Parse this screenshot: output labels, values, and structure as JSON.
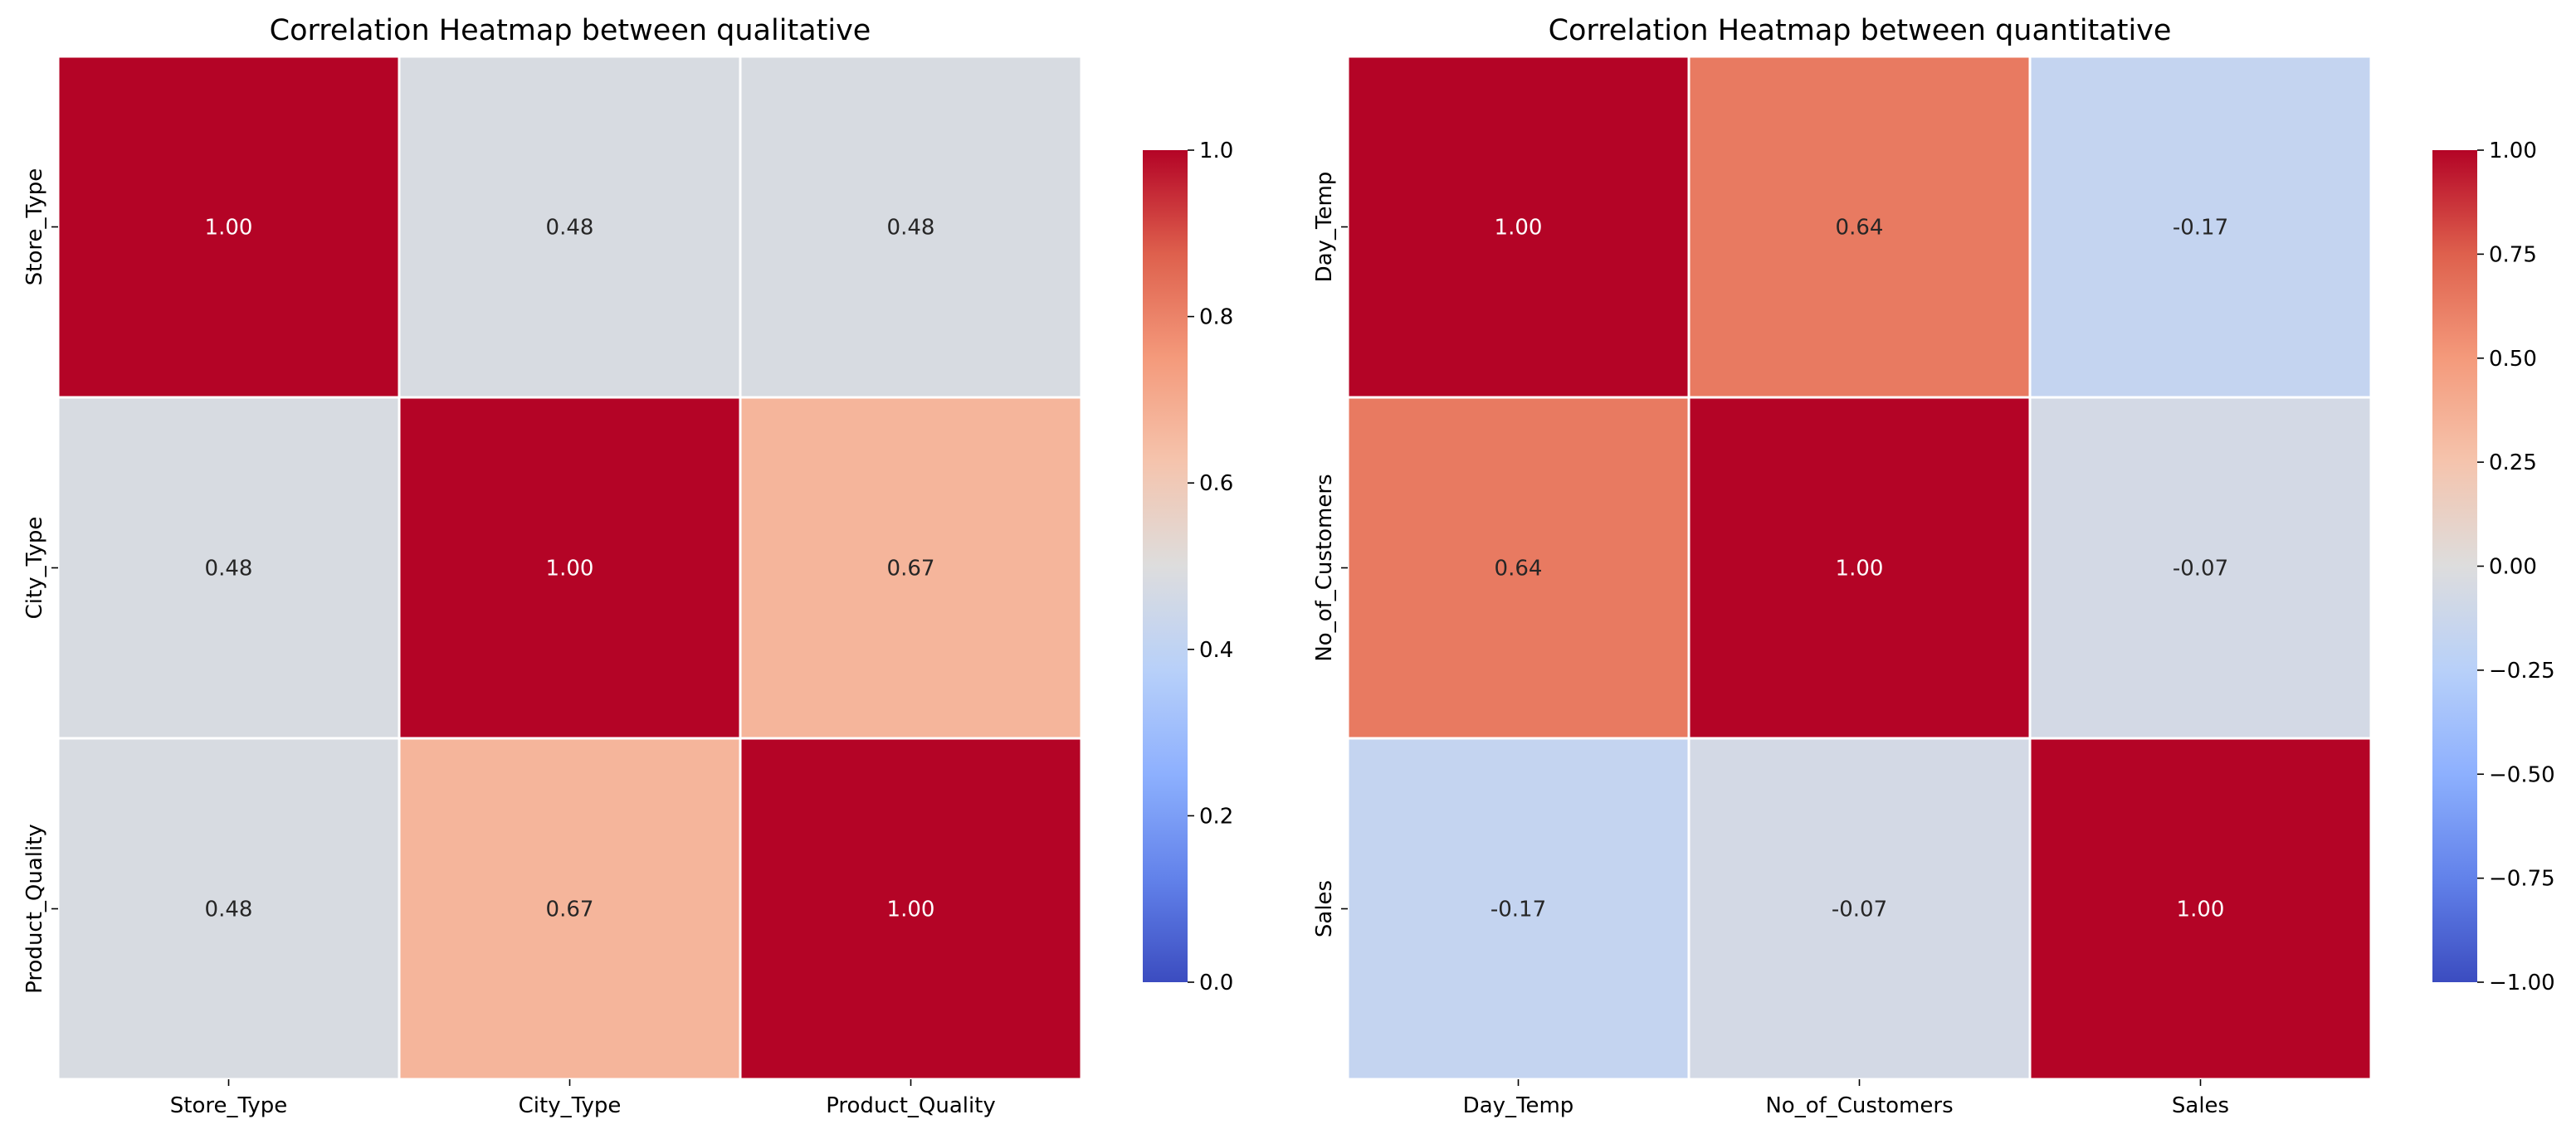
{
  "chart_data": [
    {
      "type": "heatmap",
      "title": "Correlation Heatmap between qualitative",
      "x_categories": [
        "Store_Type",
        "City_Type",
        "Product_Quality"
      ],
      "y_categories": [
        "Store_Type",
        "City_Type",
        "Product_Quality"
      ],
      "values": [
        [
          1.0,
          0.48,
          0.48
        ],
        [
          0.48,
          1.0,
          0.67
        ],
        [
          0.48,
          0.67,
          1.0
        ]
      ],
      "value_format": "2dp",
      "colormap": "coolwarm",
      "vmin": 0.0,
      "vmax": 1.0,
      "colorbar_ticks": [
        0.0,
        0.2,
        0.4,
        0.6,
        0.8,
        1.0
      ],
      "colorbar_tick_labels": [
        "0.0",
        "0.2",
        "0.4",
        "0.6",
        "0.8",
        "1.0"
      ]
    },
    {
      "type": "heatmap",
      "title": "Correlation Heatmap between quantitative",
      "x_categories": [
        "Day_Temp",
        "No_of_Customers",
        "Sales"
      ],
      "y_categories": [
        "Day_Temp",
        "No_of_Customers",
        "Sales"
      ],
      "values": [
        [
          1.0,
          0.64,
          -0.17
        ],
        [
          0.64,
          1.0,
          -0.07
        ],
        [
          -0.17,
          -0.07,
          1.0
        ]
      ],
      "value_format": "2dp",
      "colormap": "coolwarm",
      "vmin": -1.0,
      "vmax": 1.0,
      "colorbar_ticks": [
        -1.0,
        -0.75,
        -0.5,
        -0.25,
        0.0,
        0.25,
        0.5,
        0.75,
        1.0
      ],
      "colorbar_tick_labels": [
        "−1.00",
        "−0.75",
        "−0.50",
        "−0.25",
        "0.00",
        "0.25",
        "0.50",
        "0.75",
        "1.00"
      ]
    }
  ],
  "colors": {
    "coolwarm_low": "#3b4cc0",
    "coolwarm_mid": "#dddddd",
    "coolwarm_high": "#b40426",
    "cell_border": "#ffffff",
    "text_dark": "#262626",
    "text_light": "#ffffff"
  }
}
